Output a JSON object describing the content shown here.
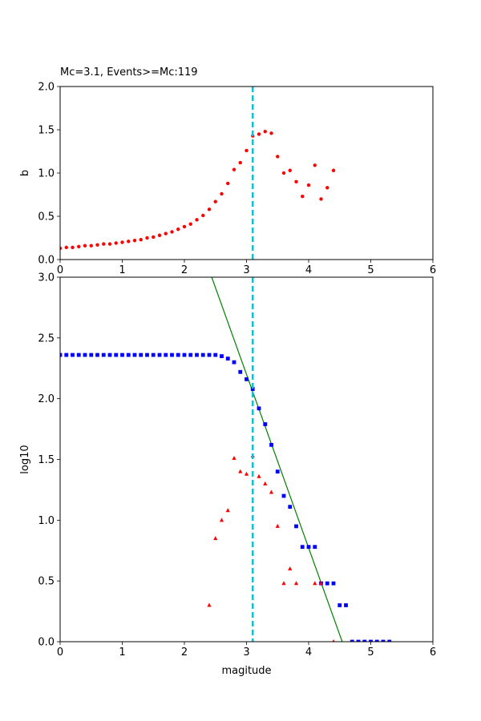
{
  "chart_data": [
    {
      "type": "scatter",
      "title": "Mc=3.1, Events>=Mc:119",
      "xlabel": "",
      "ylabel": "b",
      "xlim": [
        0,
        6
      ],
      "ylim": [
        0,
        2
      ],
      "xticks": [
        "0",
        "1",
        "2",
        "3",
        "4",
        "5",
        "6"
      ],
      "yticks": [
        "0.0",
        "0.5",
        "1.0",
        "1.5",
        "2.0"
      ],
      "grid": false,
      "vline": {
        "x": 3.1,
        "color": "#17becf",
        "style": "dashed"
      },
      "series": [
        {
          "marker": "circle",
          "color": "#ff0000",
          "points": [
            [
              0.0,
              0.13
            ],
            [
              0.1,
              0.14
            ],
            [
              0.2,
              0.14
            ],
            [
              0.3,
              0.15
            ],
            [
              0.4,
              0.16
            ],
            [
              0.5,
              0.16
            ],
            [
              0.6,
              0.17
            ],
            [
              0.7,
              0.18
            ],
            [
              0.8,
              0.18
            ],
            [
              0.9,
              0.19
            ],
            [
              1.0,
              0.2
            ],
            [
              1.1,
              0.21
            ],
            [
              1.2,
              0.22
            ],
            [
              1.3,
              0.23
            ],
            [
              1.4,
              0.25
            ],
            [
              1.5,
              0.26
            ],
            [
              1.6,
              0.28
            ],
            [
              1.7,
              0.3
            ],
            [
              1.8,
              0.32
            ],
            [
              1.9,
              0.35
            ],
            [
              2.0,
              0.38
            ],
            [
              2.1,
              0.41
            ],
            [
              2.2,
              0.46
            ],
            [
              2.3,
              0.51
            ],
            [
              2.4,
              0.58
            ],
            [
              2.5,
              0.67
            ],
            [
              2.6,
              0.76
            ],
            [
              2.7,
              0.88
            ],
            [
              2.8,
              1.04
            ],
            [
              2.9,
              1.12
            ],
            [
              3.0,
              1.26
            ],
            [
              3.1,
              1.43
            ],
            [
              3.2,
              1.45
            ],
            [
              3.3,
              1.48
            ],
            [
              3.4,
              1.46
            ],
            [
              3.5,
              1.19
            ],
            [
              3.6,
              1.0
            ],
            [
              3.7,
              1.03
            ],
            [
              3.8,
              0.9
            ],
            [
              3.9,
              0.73
            ],
            [
              4.0,
              0.86
            ],
            [
              4.1,
              1.09
            ],
            [
              4.2,
              0.7
            ],
            [
              4.3,
              0.83
            ],
            [
              4.4,
              1.03
            ]
          ]
        }
      ]
    },
    {
      "type": "scatter",
      "title": "",
      "xlabel": "magitude",
      "ylabel": "log10",
      "xlim": [
        0,
        6
      ],
      "ylim": [
        0,
        3
      ],
      "xticks": [
        "0",
        "1",
        "2",
        "3",
        "4",
        "5",
        "6"
      ],
      "yticks": [
        "0.0",
        "0.5",
        "1.0",
        "1.5",
        "2.0",
        "2.5",
        "3.0"
      ],
      "grid": false,
      "vline": {
        "x": 3.1,
        "color": "#17becf",
        "style": "dashed"
      },
      "fit_line": {
        "color": "#008000",
        "points": [
          [
            2.44,
            3.0
          ],
          [
            4.54,
            0.0
          ]
        ]
      },
      "series": [
        {
          "marker": "square",
          "color": "#0000ff",
          "points": [
            [
              0.0,
              2.36
            ],
            [
              0.1,
              2.36
            ],
            [
              0.2,
              2.36
            ],
            [
              0.3,
              2.36
            ],
            [
              0.4,
              2.36
            ],
            [
              0.5,
              2.36
            ],
            [
              0.6,
              2.36
            ],
            [
              0.7,
              2.36
            ],
            [
              0.8,
              2.36
            ],
            [
              0.9,
              2.36
            ],
            [
              1.0,
              2.36
            ],
            [
              1.1,
              2.36
            ],
            [
              1.2,
              2.36
            ],
            [
              1.3,
              2.36
            ],
            [
              1.4,
              2.36
            ],
            [
              1.5,
              2.36
            ],
            [
              1.6,
              2.36
            ],
            [
              1.7,
              2.36
            ],
            [
              1.8,
              2.36
            ],
            [
              1.9,
              2.36
            ],
            [
              2.0,
              2.36
            ],
            [
              2.1,
              2.36
            ],
            [
              2.2,
              2.36
            ],
            [
              2.3,
              2.36
            ],
            [
              2.4,
              2.36
            ],
            [
              2.5,
              2.36
            ],
            [
              2.6,
              2.35
            ],
            [
              2.7,
              2.33
            ],
            [
              2.8,
              2.3
            ],
            [
              2.9,
              2.22
            ],
            [
              3.0,
              2.16
            ],
            [
              3.1,
              2.08
            ],
            [
              3.2,
              1.92
            ],
            [
              3.3,
              1.79
            ],
            [
              3.4,
              1.62
            ],
            [
              3.5,
              1.4
            ],
            [
              3.6,
              1.2
            ],
            [
              3.7,
              1.11
            ],
            [
              3.8,
              0.95
            ],
            [
              3.9,
              0.78
            ],
            [
              4.0,
              0.78
            ],
            [
              4.1,
              0.78
            ],
            [
              4.2,
              0.48
            ],
            [
              4.3,
              0.48
            ],
            [
              4.4,
              0.48
            ],
            [
              4.5,
              0.3
            ],
            [
              4.6,
              0.3
            ],
            [
              4.7,
              0.0
            ],
            [
              4.8,
              0.0
            ],
            [
              4.9,
              0.0
            ],
            [
              5.0,
              0.0
            ],
            [
              5.1,
              0.0
            ],
            [
              5.2,
              0.0
            ],
            [
              5.3,
              0.0
            ]
          ]
        },
        {
          "marker": "triangle",
          "color": "#ff0000",
          "points": [
            [
              2.4,
              0.3
            ],
            [
              2.5,
              0.85
            ],
            [
              2.6,
              1.0
            ],
            [
              2.7,
              1.08
            ],
            [
              2.8,
              1.51
            ],
            [
              2.9,
              1.4
            ],
            [
              3.0,
              1.38
            ],
            [
              3.1,
              1.53
            ],
            [
              3.2,
              1.36
            ],
            [
              3.3,
              1.3
            ],
            [
              3.4,
              1.23
            ],
            [
              3.5,
              0.95
            ],
            [
              3.6,
              0.48
            ],
            [
              3.7,
              0.6
            ],
            [
              3.8,
              0.48
            ],
            [
              4.1,
              0.48
            ],
            [
              4.2,
              0.48
            ],
            [
              4.4,
              0.0
            ]
          ]
        }
      ]
    }
  ]
}
